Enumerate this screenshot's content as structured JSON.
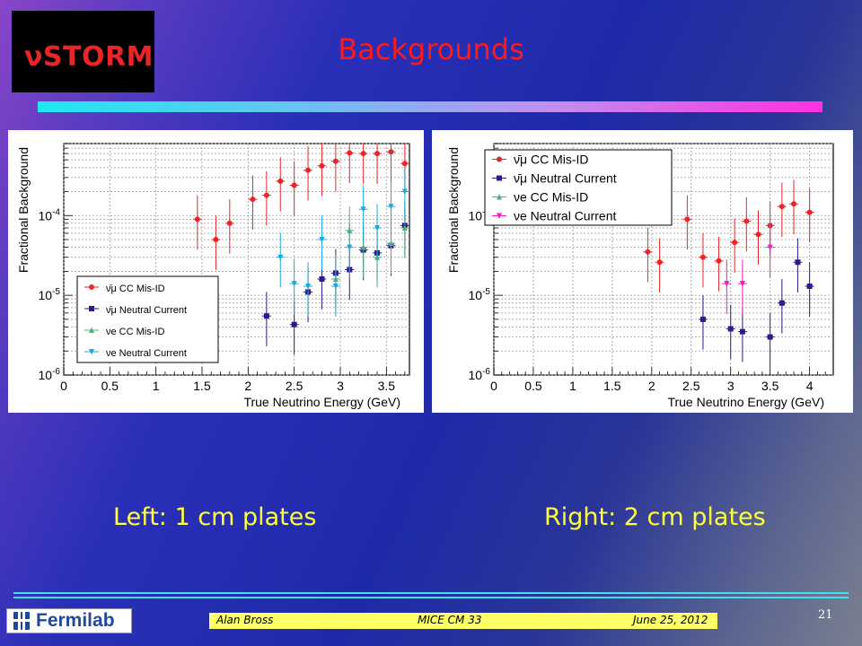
{
  "slide": {
    "logo_text": "νSTORM",
    "title": "Backgrounds",
    "caption_left": "Left: 1 cm plates",
    "caption_right": "Right: 2 cm plates",
    "footer_author": "Alan Bross",
    "footer_meeting": "MICE CM 33",
    "footer_date": "June 25, 2012",
    "page_number": "21",
    "fermilab": "Fermilab"
  },
  "colors": {
    "red": "#e8262a",
    "navy": "#2a1c8a",
    "green": "#52b07a",
    "cyan": "#1ea8e0",
    "magenta": "#f01cc0"
  },
  "chart_data": [
    {
      "type": "scatter",
      "xlabel": "True Neutrino Energy (GeV)",
      "ylabel": "Fractional Background",
      "xlim": [
        0,
        3.75
      ],
      "ylim": [
        1e-06,
        0.0008
      ],
      "yscale": "log",
      "xticks": [
        "0",
        "0.5",
        "1",
        "1.5",
        "2",
        "2.5",
        "3",
        "3.5"
      ],
      "yticks": [
        "10-6",
        "10-5",
        "10-4"
      ],
      "grid": true,
      "legend_position": "bottom-left",
      "series": [
        {
          "name": "ν̄μ CC Mis-ID",
          "color": "#e8262a",
          "marker": "circle",
          "x": [
            1.45,
            1.65,
            1.8,
            2.05,
            2.2,
            2.35,
            2.5,
            2.65,
            2.8,
            2.95,
            3.1,
            3.25,
            3.4,
            3.55,
            3.7
          ],
          "y": [
            9e-05,
            5e-05,
            8e-05,
            0.00016,
            0.00018,
            0.00027,
            0.00024,
            0.00037,
            0.00042,
            0.00048,
            0.00061,
            0.0006,
            0.0006,
            0.00063,
            0.00045
          ]
        },
        {
          "name": "ν̄μ Neutral Current",
          "color": "#2a1c8a",
          "marker": "square",
          "x": [
            2.2,
            2.5,
            2.65,
            2.8,
            2.95,
            3.1,
            3.25,
            3.4,
            3.55,
            3.7
          ],
          "y": [
            5.5e-06,
            4.3e-06,
            1.1e-05,
            1.6e-05,
            1.9e-05,
            2.1e-05,
            3.7e-05,
            3.4e-05,
            4.2e-05,
            7.5e-05
          ]
        },
        {
          "name": "νe CC Mis-ID",
          "color": "#52b07a",
          "marker": "triangle-up",
          "x": [
            2.95,
            3.1,
            3.25,
            3.4,
            3.55,
            3.7
          ],
          "y": [
            1.6e-05,
            6.5e-05,
            4e-05,
            3e-05,
            4.5e-05,
            7e-05
          ]
        },
        {
          "name": "νe Neutral Current",
          "color": "#1ea8e0",
          "marker": "triangle-down",
          "x": [
            2.35,
            2.5,
            2.65,
            2.8,
            2.95,
            3.1,
            3.25,
            3.4,
            3.55,
            3.7
          ],
          "y": [
            3e-05,
            1.4e-05,
            1.3e-05,
            5e-05,
            1.3e-05,
            4e-05,
            0.00012,
            7e-05,
            0.00013,
            0.0002
          ]
        }
      ]
    },
    {
      "type": "scatter",
      "xlabel": "True Neutrino Energy (GeV)",
      "ylabel": "Fractional Background",
      "xlim": [
        0,
        4.3
      ],
      "ylim": [
        1e-06,
        0.0008
      ],
      "yscale": "log",
      "xticks": [
        "0",
        "0.5",
        "1",
        "1.5",
        "2",
        "2.5",
        "3",
        "3.5",
        "4"
      ],
      "yticks": [
        "10-6",
        "10-5",
        "10-4"
      ],
      "grid": true,
      "legend_position": "top-left",
      "series": [
        {
          "name": "ν̄μ CC Mis-ID",
          "color": "#e8262a",
          "marker": "circle",
          "x": [
            1.95,
            2.1,
            2.45,
            2.65,
            2.85,
            3.05,
            3.2,
            3.35,
            3.5,
            3.65,
            3.8,
            4.0
          ],
          "y": [
            3.5e-05,
            2.6e-05,
            9e-05,
            3e-05,
            2.7e-05,
            4.6e-05,
            8.5e-05,
            5.8e-05,
            7.5e-05,
            0.00013,
            0.00014,
            0.00011
          ]
        },
        {
          "name": "ν̄μ Neutral Current",
          "color": "#2a1c8a",
          "marker": "square",
          "x": [
            2.65,
            3.0,
            3.15,
            3.5,
            3.65,
            3.85,
            4.0
          ],
          "y": [
            5e-06,
            3.8e-06,
            3.5e-06,
            3e-06,
            8e-06,
            2.6e-05,
            1.3e-05
          ]
        },
        {
          "name": "νe CC Mis-ID",
          "color": "#52b07a",
          "marker": "triangle-up",
          "x": [],
          "y": []
        },
        {
          "name": "νe Neutral Current",
          "color": "#f01cc0",
          "marker": "triangle-down",
          "x": [
            2.95,
            3.15,
            3.5
          ],
          "y": [
            1.4e-05,
            1.4e-05,
            4e-05
          ]
        }
      ]
    }
  ]
}
